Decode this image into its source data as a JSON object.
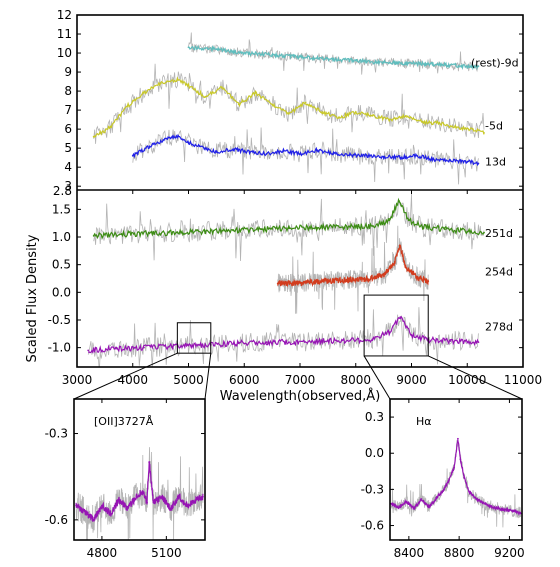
{
  "chart_data": [
    {
      "panel": "top",
      "type": "line",
      "xlim": [
        3000,
        11000
      ],
      "ylim": [
        2.8,
        12
      ],
      "yticks": [
        "3",
        "4",
        "5",
        "6",
        "7",
        "8",
        "9",
        "10",
        "11",
        "12"
      ],
      "ybottom_label": "2.8",
      "series": [
        {
          "name": "(rest)-9d",
          "color": "#5fbdbd",
          "x": [
            5000,
            5500,
            6000,
            6500,
            7000,
            7500,
            8000,
            8500,
            9000,
            9500,
            10000,
            10200
          ],
          "y": [
            10.3,
            10.2,
            10.0,
            9.9,
            9.8,
            9.7,
            9.6,
            9.5,
            9.45,
            9.4,
            9.3,
            9.3
          ]
        },
        {
          "name": "-5d",
          "color": "#c8c828",
          "x": [
            3300,
            3600,
            3900,
            4200,
            4500,
            4800,
            5000,
            5300,
            5600,
            5900,
            6200,
            6500,
            6800,
            7100,
            7400,
            7700,
            8000,
            8300,
            8600,
            8900,
            9200,
            9500,
            9800,
            10100,
            10300
          ],
          "y": [
            5.6,
            6.1,
            7.2,
            7.9,
            8.4,
            8.6,
            8.3,
            7.7,
            8.2,
            7.3,
            7.9,
            7.3,
            6.8,
            7.4,
            6.9,
            6.6,
            6.9,
            6.7,
            6.5,
            6.7,
            6.4,
            6.3,
            6.1,
            6.0,
            5.8
          ]
        },
        {
          "name": "13d",
          "color": "#2020e8",
          "x": [
            4000,
            4300,
            4600,
            4800,
            5000,
            5200,
            5500,
            5800,
            6100,
            6400,
            6700,
            7000,
            7300,
            7600,
            7900,
            8200,
            8500,
            8800,
            9100,
            9400,
            9700,
            10000,
            10200
          ],
          "y": [
            4.6,
            5.1,
            5.5,
            5.6,
            5.3,
            5.1,
            4.8,
            4.95,
            4.8,
            4.7,
            4.85,
            4.7,
            4.9,
            4.7,
            4.65,
            4.6,
            4.55,
            4.5,
            4.6,
            4.4,
            4.35,
            4.3,
            4.2
          ]
        }
      ]
    },
    {
      "panel": "bottom",
      "type": "line",
      "xlim": [
        3000,
        11000
      ],
      "ylim": [
        -1.35,
        1.85
      ],
      "xticks": [
        "3000",
        "4000",
        "5000",
        "6000",
        "7000",
        "8000",
        "9000",
        "10000",
        "11000"
      ],
      "yticks": [
        "-1.0",
        "-0.5",
        "0.0",
        "0.5",
        "1.0",
        "1.5"
      ],
      "xlabel": "Wavelength(observed,Å)",
      "ylabel": "Scaled Flux Density",
      "series": [
        {
          "name": "251d",
          "color": "#3c8c14",
          "x": [
            3300,
            3800,
            4300,
            4800,
            5300,
            5800,
            6300,
            6800,
            7300,
            7800,
            8300,
            8600,
            8780,
            8950,
            9200,
            9600,
            10000,
            10300
          ],
          "y": [
            1.02,
            1.05,
            1.07,
            1.08,
            1.1,
            1.12,
            1.14,
            1.16,
            1.17,
            1.18,
            1.2,
            1.3,
            1.65,
            1.3,
            1.18,
            1.14,
            1.1,
            1.08
          ]
        },
        {
          "name": "254d",
          "color": "#d23c1e",
          "x": [
            6600,
            7000,
            7400,
            7800,
            8200,
            8500,
            8700,
            8790,
            8900,
            9100,
            9300
          ],
          "y": [
            0.16,
            0.17,
            0.2,
            0.22,
            0.24,
            0.32,
            0.55,
            0.85,
            0.45,
            0.28,
            0.2
          ]
        },
        {
          "name": "278d",
          "color": "#9614b4",
          "x": [
            3200,
            3700,
            4200,
            4700,
            5000,
            5400,
            5900,
            6400,
            6900,
            7400,
            7900,
            8300,
            8600,
            8800,
            9000,
            9300,
            9700,
            10200
          ],
          "y": [
            -1.05,
            -1.02,
            -1.0,
            -0.98,
            -0.96,
            -0.95,
            -0.92,
            -0.9,
            -0.9,
            -0.88,
            -0.87,
            -0.85,
            -0.72,
            -0.45,
            -0.78,
            -0.86,
            -0.88,
            -0.9
          ]
        }
      ],
      "zoom_boxes": [
        {
          "x": [
            4800,
            5400
          ],
          "y": [
            -1.1,
            -0.55
          ]
        },
        {
          "x": [
            8150,
            9300
          ],
          "y": [
            -1.15,
            -0.05
          ]
        }
      ]
    },
    {
      "panel": "inset-left",
      "type": "line",
      "annotation": "[OII]3727Å",
      "xlim": [
        4670,
        5280
      ],
      "ylim": [
        -0.67,
        -0.18
      ],
      "xticks": [
        "4800",
        "5100"
      ],
      "yticks": [
        "-0.3",
        "-0.6"
      ],
      "series": [
        {
          "color": "#9614b4",
          "x": [
            4680,
            4720,
            4760,
            4800,
            4840,
            4880,
            4920,
            4960,
            4990,
            5010,
            5020,
            5040,
            5080,
            5120,
            5160,
            5200,
            5240,
            5270
          ],
          "y": [
            -0.55,
            -0.57,
            -0.6,
            -0.55,
            -0.58,
            -0.53,
            -0.56,
            -0.52,
            -0.5,
            -0.54,
            -0.4,
            -0.54,
            -0.52,
            -0.56,
            -0.52,
            -0.55,
            -0.53,
            -0.52
          ]
        }
      ]
    },
    {
      "panel": "inset-right",
      "type": "line",
      "annotation": "Hα",
      "xlim": [
        8250,
        9300
      ],
      "ylim": [
        -0.72,
        0.45
      ],
      "xticks": [
        "8400",
        "8800",
        "9200"
      ],
      "yticks": [
        "0.3",
        "0.0",
        "-0.3",
        "-0.6"
      ],
      "series": [
        {
          "color": "#9614b4",
          "x": [
            8260,
            8320,
            8380,
            8440,
            8500,
            8560,
            8620,
            8680,
            8720,
            8760,
            8790,
            8810,
            8840,
            8880,
            8940,
            9000,
            9080,
            9160,
            9240,
            9290
          ],
          "y": [
            -0.42,
            -0.45,
            -0.4,
            -0.46,
            -0.38,
            -0.45,
            -0.37,
            -0.3,
            -0.22,
            -0.12,
            0.12,
            -0.05,
            -0.2,
            -0.32,
            -0.38,
            -0.42,
            -0.45,
            -0.47,
            -0.48,
            -0.5
          ]
        }
      ]
    }
  ]
}
